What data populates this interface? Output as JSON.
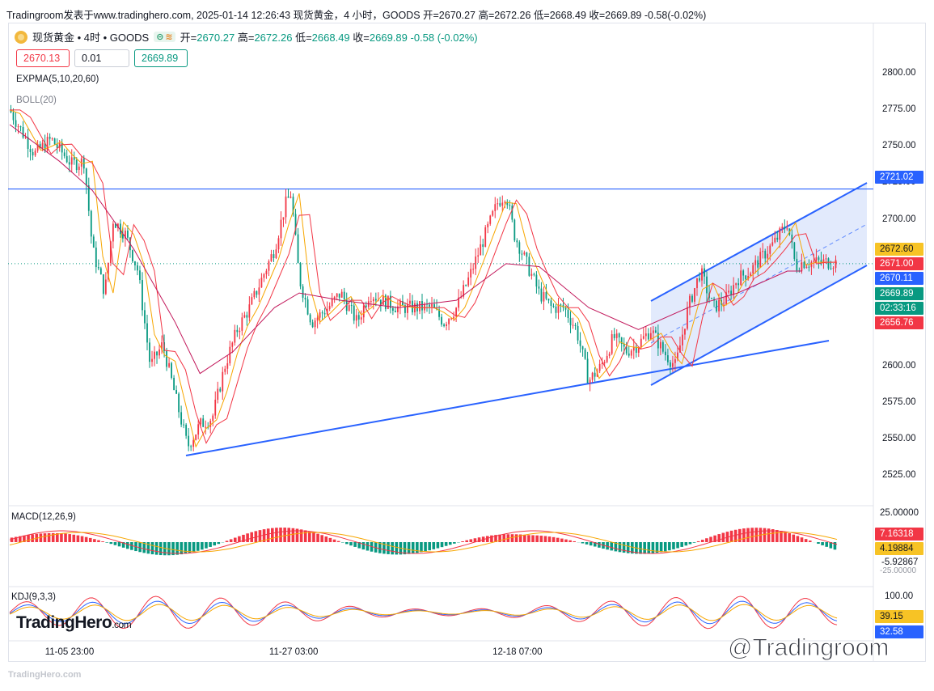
{
  "header": {
    "title": "Tradingroom发表于www.tradinghero.com, 2025-01-14 12:26:43 现货黄金，4 小时，GOODS 开=2670.27 高=2672.26 低=2668.49 收=2669.89 -0.58(-0.02%)"
  },
  "legend": {
    "symbol": "现货黄金 • 4时 • GOODS",
    "pill_left": "⊝",
    "pill_right": "≋",
    "open_label": "开=",
    "open": "2670.27",
    "high_label": "高=",
    "high": "2672.26",
    "low_label": "低=",
    "low": "2668.49",
    "close_label": "收=",
    "close": "2669.89",
    "change": "-0.58 (-0.02%)"
  },
  "trade": {
    "sell": "2670.13",
    "qty": "0.01",
    "buy": "2669.89"
  },
  "indicators": {
    "ema": "EXPMA(5,10,20,60)",
    "boll": "BOLL(20)",
    "macd": "MACD(12,26,9)",
    "kdj": "KDJ(9,3,3)"
  },
  "colors": {
    "up": "#f23645",
    "down": "#089981",
    "trendline": "#2962ff",
    "channel_fill": "#dbe5fb"
  },
  "chart_data": {
    "type": "candlestick",
    "symbol": "现货黄金",
    "timeframe": "4时",
    "yaxis": {
      "ticks": [
        "2800.00",
        "2775.00",
        "2750.00",
        "2725.00",
        "2700.00",
        "2600.00",
        "2575.00",
        "2550.00",
        "2525.00"
      ],
      "tick_values": [
        2800,
        2775,
        2750,
        2725,
        2700,
        2600,
        2575,
        2550,
        2525
      ],
      "range": [
        2513,
        2828
      ]
    },
    "x_ticks": [
      "11-05 23:00",
      "11-27 03:00",
      "12-18 07:00"
    ],
    "x_tick_positions": [
      0.074,
      0.345,
      0.615
    ],
    "price_tags": [
      {
        "label": "2721.02",
        "color": "#2962ff"
      },
      {
        "label": "2672.60",
        "color": "#f7c325"
      },
      {
        "label": "2671.00",
        "color": "#f23645"
      },
      {
        "label": "2670.11",
        "color": "#2962ff"
      },
      {
        "label": "2669.89",
        "color": "#089981"
      },
      {
        "label": "02:33:16",
        "color": "#089981"
      },
      {
        "label": "2656.76",
        "color": "#f23645"
      }
    ],
    "horizontal_line": 2721.02,
    "close_path": [
      [
        0.0,
        2775
      ],
      [
        0.03,
        2745
      ],
      [
        0.05,
        2755
      ],
      [
        0.075,
        2738
      ],
      [
        0.09,
        2740
      ],
      [
        0.1,
        2680
      ],
      [
        0.115,
        2650
      ],
      [
        0.125,
        2700
      ],
      [
        0.14,
        2690
      ],
      [
        0.155,
        2665
      ],
      [
        0.17,
        2600
      ],
      [
        0.185,
        2615
      ],
      [
        0.2,
        2580
      ],
      [
        0.215,
        2545
      ],
      [
        0.23,
        2560
      ],
      [
        0.245,
        2565
      ],
      [
        0.26,
        2600
      ],
      [
        0.275,
        2625
      ],
      [
        0.29,
        2640
      ],
      [
        0.305,
        2660
      ],
      [
        0.32,
        2680
      ],
      [
        0.333,
        2710
      ],
      [
        0.34,
        2718
      ],
      [
        0.35,
        2660
      ],
      [
        0.365,
        2630
      ],
      [
        0.385,
        2640
      ],
      [
        0.4,
        2650
      ],
      [
        0.42,
        2630
      ],
      [
        0.435,
        2650
      ],
      [
        0.45,
        2645
      ],
      [
        0.47,
        2640
      ],
      [
        0.49,
        2640
      ],
      [
        0.51,
        2640
      ],
      [
        0.525,
        2630
      ],
      [
        0.54,
        2640
      ],
      [
        0.555,
        2660
      ],
      [
        0.575,
        2690
      ],
      [
        0.59,
        2712
      ],
      [
        0.6,
        2718
      ],
      [
        0.61,
        2690
      ],
      [
        0.625,
        2670
      ],
      [
        0.64,
        2650
      ],
      [
        0.655,
        2640
      ],
      [
        0.67,
        2640
      ],
      [
        0.685,
        2625
      ],
      [
        0.7,
        2590
      ],
      [
        0.715,
        2600
      ],
      [
        0.73,
        2620
      ],
      [
        0.745,
        2610
      ],
      [
        0.76,
        2615
      ],
      [
        0.775,
        2625
      ],
      [
        0.79,
        2610
      ],
      [
        0.805,
        2600
      ],
      [
        0.82,
        2640
      ],
      [
        0.835,
        2665
      ],
      [
        0.85,
        2640
      ],
      [
        0.865,
        2645
      ],
      [
        0.88,
        2660
      ],
      [
        0.895,
        2665
      ],
      [
        0.91,
        2675
      ],
      [
        0.925,
        2685
      ],
      [
        0.94,
        2698
      ],
      [
        0.95,
        2668
      ],
      [
        0.958,
        2671
      ]
    ],
    "ema_path": [
      [
        0.0,
        2765
      ],
      [
        0.06,
        2740
      ],
      [
        0.1,
        2720
      ],
      [
        0.15,
        2680
      ],
      [
        0.2,
        2630
      ],
      [
        0.23,
        2595
      ],
      [
        0.27,
        2610
      ],
      [
        0.32,
        2640
      ],
      [
        0.35,
        2650
      ],
      [
        0.4,
        2645
      ],
      [
        0.47,
        2640
      ],
      [
        0.54,
        2645
      ],
      [
        0.6,
        2670
      ],
      [
        0.64,
        2668
      ],
      [
        0.7,
        2640
      ],
      [
        0.76,
        2625
      ],
      [
        0.82,
        2640
      ],
      [
        0.88,
        2650
      ],
      [
        0.94,
        2665
      ],
      [
        0.958,
        2665
      ]
    ],
    "macd": {
      "axis": [
        "25.00000",
        "7.16318",
        "4.19884",
        "-5.92867",
        "-25.00000"
      ]
    },
    "kdj": {
      "axis": [
        "100.00",
        "39.15",
        "32.58"
      ]
    }
  },
  "watermark": {
    "logo": "TradingHero",
    "logo_suffix": ".com",
    "footer": "TradingHero.com",
    "overlay": "@Tradingroom"
  }
}
